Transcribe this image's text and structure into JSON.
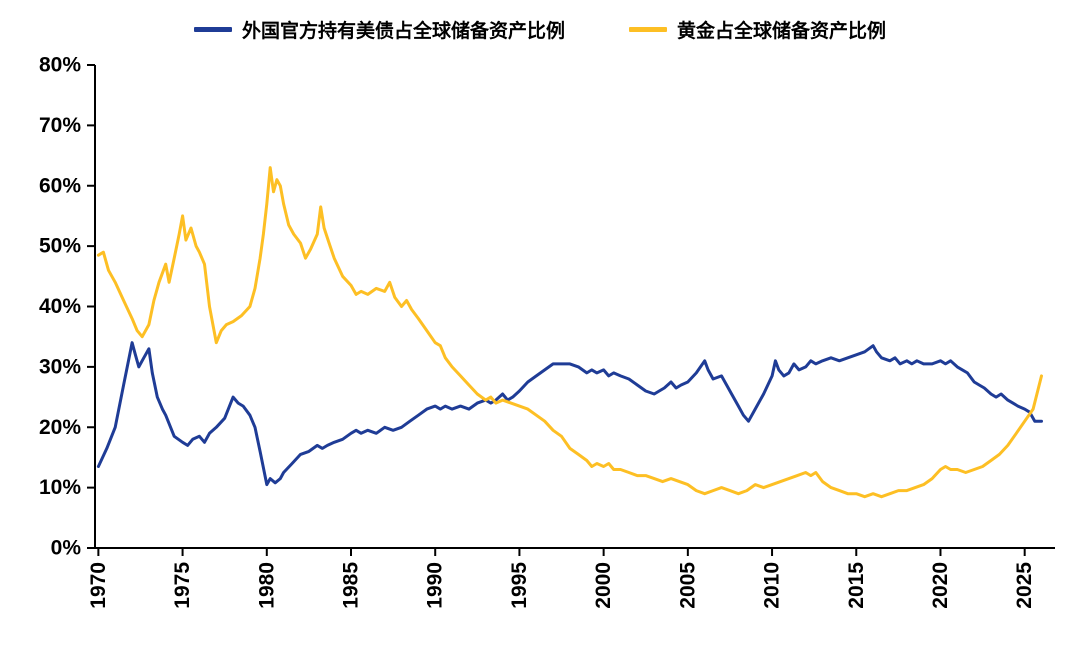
{
  "chart_data": {
    "type": "line",
    "title": "",
    "grid": false,
    "legend_position": "top",
    "axis_color": "#000000",
    "xlim": [
      1969.8,
      2026.8
    ],
    "ylim": [
      0,
      80
    ],
    "yticks": [
      {
        "value": 0,
        "label": "0%"
      },
      {
        "value": 10,
        "label": "10%"
      },
      {
        "value": 20,
        "label": "20%"
      },
      {
        "value": 30,
        "label": "30%"
      },
      {
        "value": 40,
        "label": "40%"
      },
      {
        "value": 50,
        "label": "50%"
      },
      {
        "value": 60,
        "label": "60%"
      },
      {
        "value": 70,
        "label": "70%"
      },
      {
        "value": 80,
        "label": "80%"
      }
    ],
    "xticks": [
      {
        "value": 1970,
        "label": "1970"
      },
      {
        "value": 1975,
        "label": "1975"
      },
      {
        "value": 1980,
        "label": "1980"
      },
      {
        "value": 1985,
        "label": "1985"
      },
      {
        "value": 1990,
        "label": "1990"
      },
      {
        "value": 1995,
        "label": "1995"
      },
      {
        "value": 2000,
        "label": "2000"
      },
      {
        "value": 2005,
        "label": "2005"
      },
      {
        "value": 2010,
        "label": "2010"
      },
      {
        "value": 2015,
        "label": "2015"
      },
      {
        "value": 2020,
        "label": "2020"
      },
      {
        "value": 2025,
        "label": "2025"
      }
    ],
    "legend": [
      {
        "label": "外国官方持有美债占全球储备资产比例",
        "color": "#1F3C96"
      },
      {
        "label": "黄金占全球储备资产比例",
        "color": "#FDBF24"
      }
    ],
    "series": [
      {
        "id": "treasury",
        "name": "外国官方持有美债占全球储备资产比例",
        "color": "#1F3C96",
        "points": [
          [
            1970.0,
            13.5
          ],
          [
            1970.5,
            16.5
          ],
          [
            1971.0,
            20
          ],
          [
            1971.5,
            27
          ],
          [
            1972.0,
            34
          ],
          [
            1972.2,
            32
          ],
          [
            1972.4,
            30
          ],
          [
            1972.7,
            31.5
          ],
          [
            1973.0,
            33
          ],
          [
            1973.2,
            29
          ],
          [
            1973.5,
            25
          ],
          [
            1973.8,
            23
          ],
          [
            1974.0,
            22
          ],
          [
            1974.5,
            18.5
          ],
          [
            1975.0,
            17.5
          ],
          [
            1975.3,
            17
          ],
          [
            1975.6,
            18
          ],
          [
            1976.0,
            18.5
          ],
          [
            1976.3,
            17.5
          ],
          [
            1976.6,
            19
          ],
          [
            1977.0,
            20
          ],
          [
            1977.5,
            21.5
          ],
          [
            1978.0,
            25
          ],
          [
            1978.3,
            24
          ],
          [
            1978.6,
            23.5
          ],
          [
            1979.0,
            22
          ],
          [
            1979.3,
            20
          ],
          [
            1979.6,
            16
          ],
          [
            1980.0,
            10.5
          ],
          [
            1980.2,
            11.5
          ],
          [
            1980.5,
            10.8
          ],
          [
            1980.8,
            11.5
          ],
          [
            1981.0,
            12.5
          ],
          [
            1981.5,
            14
          ],
          [
            1982.0,
            15.5
          ],
          [
            1982.5,
            16
          ],
          [
            1983.0,
            17
          ],
          [
            1983.3,
            16.5
          ],
          [
            1983.6,
            17
          ],
          [
            1984.0,
            17.5
          ],
          [
            1984.5,
            18
          ],
          [
            1985.0,
            19
          ],
          [
            1985.3,
            19.5
          ],
          [
            1985.6,
            19
          ],
          [
            1986.0,
            19.5
          ],
          [
            1986.5,
            19
          ],
          [
            1987.0,
            20
          ],
          [
            1987.5,
            19.5
          ],
          [
            1988.0,
            20
          ],
          [
            1988.5,
            21
          ],
          [
            1989.0,
            22
          ],
          [
            1989.5,
            23
          ],
          [
            1990.0,
            23.5
          ],
          [
            1990.3,
            23
          ],
          [
            1990.6,
            23.5
          ],
          [
            1991.0,
            23
          ],
          [
            1991.5,
            23.5
          ],
          [
            1992.0,
            23
          ],
          [
            1992.5,
            24
          ],
          [
            1993.0,
            24.5
          ],
          [
            1993.3,
            24
          ],
          [
            1993.6,
            24.5
          ],
          [
            1994.0,
            25.5
          ],
          [
            1994.3,
            24.5
          ],
          [
            1994.6,
            25
          ],
          [
            1995.0,
            26
          ],
          [
            1995.5,
            27.5
          ],
          [
            1996.0,
            28.5
          ],
          [
            1996.5,
            29.5
          ],
          [
            1997.0,
            30.5
          ],
          [
            1997.5,
            30.5
          ],
          [
            1998.0,
            30.5
          ],
          [
            1998.5,
            30
          ],
          [
            1999.0,
            29
          ],
          [
            1999.3,
            29.5
          ],
          [
            1999.6,
            29
          ],
          [
            2000.0,
            29.5
          ],
          [
            2000.3,
            28.5
          ],
          [
            2000.6,
            29
          ],
          [
            2001.0,
            28.5
          ],
          [
            2001.5,
            28
          ],
          [
            2002.0,
            27
          ],
          [
            2002.5,
            26
          ],
          [
            2003.0,
            25.5
          ],
          [
            2003.3,
            26
          ],
          [
            2003.6,
            26.5
          ],
          [
            2004.0,
            27.5
          ],
          [
            2004.3,
            26.5
          ],
          [
            2004.6,
            27
          ],
          [
            2005.0,
            27.5
          ],
          [
            2005.5,
            29
          ],
          [
            2006.0,
            31
          ],
          [
            2006.2,
            29.5
          ],
          [
            2006.5,
            28
          ],
          [
            2007.0,
            28.5
          ],
          [
            2007.3,
            27
          ],
          [
            2007.6,
            25.5
          ],
          [
            2008.0,
            23.5
          ],
          [
            2008.3,
            22
          ],
          [
            2008.6,
            21
          ],
          [
            2009.0,
            23
          ],
          [
            2009.5,
            25.5
          ],
          [
            2010.0,
            28.5
          ],
          [
            2010.2,
            31
          ],
          [
            2010.4,
            29.5
          ],
          [
            2010.7,
            28.5
          ],
          [
            2011.0,
            29
          ],
          [
            2011.3,
            30.5
          ],
          [
            2011.6,
            29.5
          ],
          [
            2012.0,
            30
          ],
          [
            2012.3,
            31
          ],
          [
            2012.6,
            30.5
          ],
          [
            2013.0,
            31
          ],
          [
            2013.5,
            31.5
          ],
          [
            2014.0,
            31
          ],
          [
            2014.5,
            31.5
          ],
          [
            2015.0,
            32
          ],
          [
            2015.5,
            32.5
          ],
          [
            2016.0,
            33.5
          ],
          [
            2016.2,
            32.5
          ],
          [
            2016.5,
            31.5
          ],
          [
            2017.0,
            31
          ],
          [
            2017.3,
            31.5
          ],
          [
            2017.6,
            30.5
          ],
          [
            2018.0,
            31
          ],
          [
            2018.3,
            30.5
          ],
          [
            2018.6,
            31
          ],
          [
            2019.0,
            30.5
          ],
          [
            2019.5,
            30.5
          ],
          [
            2020.0,
            31
          ],
          [
            2020.3,
            30.5
          ],
          [
            2020.6,
            31
          ],
          [
            2021.0,
            30
          ],
          [
            2021.3,
            29.5
          ],
          [
            2021.6,
            29
          ],
          [
            2022.0,
            27.5
          ],
          [
            2022.3,
            27
          ],
          [
            2022.6,
            26.5
          ],
          [
            2023.0,
            25.5
          ],
          [
            2023.3,
            25
          ],
          [
            2023.6,
            25.5
          ],
          [
            2024.0,
            24.5
          ],
          [
            2024.3,
            24
          ],
          [
            2024.6,
            23.5
          ],
          [
            2025.0,
            23
          ],
          [
            2025.3,
            22.5
          ],
          [
            2025.6,
            21
          ],
          [
            2026.0,
            21
          ]
        ]
      },
      {
        "id": "gold",
        "name": "黄金占全球储备资产比例",
        "color": "#FDBF24",
        "points": [
          [
            1970.0,
            48.5
          ],
          [
            1970.3,
            49
          ],
          [
            1970.6,
            46
          ],
          [
            1971.0,
            44
          ],
          [
            1971.5,
            41
          ],
          [
            1972.0,
            38
          ],
          [
            1972.3,
            36
          ],
          [
            1972.6,
            35
          ],
          [
            1973.0,
            37
          ],
          [
            1973.3,
            41
          ],
          [
            1973.6,
            44
          ],
          [
            1974.0,
            47
          ],
          [
            1974.2,
            44
          ],
          [
            1974.5,
            48
          ],
          [
            1974.8,
            52
          ],
          [
            1975.0,
            55
          ],
          [
            1975.2,
            51
          ],
          [
            1975.5,
            53
          ],
          [
            1975.8,
            50
          ],
          [
            1976.0,
            49
          ],
          [
            1976.3,
            47
          ],
          [
            1976.6,
            40
          ],
          [
            1977.0,
            34
          ],
          [
            1977.3,
            36
          ],
          [
            1977.6,
            37
          ],
          [
            1978.0,
            37.5
          ],
          [
            1978.5,
            38.5
          ],
          [
            1979.0,
            40
          ],
          [
            1979.3,
            43
          ],
          [
            1979.6,
            48
          ],
          [
            1979.8,
            52
          ],
          [
            1980.0,
            57
          ],
          [
            1980.2,
            63
          ],
          [
            1980.4,
            59
          ],
          [
            1980.6,
            61
          ],
          [
            1980.8,
            60
          ],
          [
            1981.0,
            57
          ],
          [
            1981.3,
            53.5
          ],
          [
            1981.6,
            52
          ],
          [
            1982.0,
            50.5
          ],
          [
            1982.3,
            48
          ],
          [
            1982.6,
            49.5
          ],
          [
            1983.0,
            52
          ],
          [
            1983.2,
            56.5
          ],
          [
            1983.4,
            53
          ],
          [
            1983.7,
            50.5
          ],
          [
            1984.0,
            48
          ],
          [
            1984.5,
            45
          ],
          [
            1985.0,
            43.5
          ],
          [
            1985.3,
            42
          ],
          [
            1985.6,
            42.5
          ],
          [
            1986.0,
            42
          ],
          [
            1986.5,
            43
          ],
          [
            1987.0,
            42.5
          ],
          [
            1987.3,
            44
          ],
          [
            1987.6,
            41.5
          ],
          [
            1988.0,
            40
          ],
          [
            1988.3,
            41
          ],
          [
            1988.6,
            39.5
          ],
          [
            1989.0,
            38
          ],
          [
            1989.5,
            36
          ],
          [
            1990.0,
            34
          ],
          [
            1990.3,
            33.5
          ],
          [
            1990.6,
            31.5
          ],
          [
            1991.0,
            30
          ],
          [
            1991.5,
            28.5
          ],
          [
            1992.0,
            27
          ],
          [
            1992.5,
            25.5
          ],
          [
            1993.0,
            24.5
          ],
          [
            1993.3,
            25
          ],
          [
            1993.6,
            24
          ],
          [
            1994.0,
            24.5
          ],
          [
            1994.5,
            24
          ],
          [
            1995.0,
            23.5
          ],
          [
            1995.5,
            23
          ],
          [
            1996.0,
            22
          ],
          [
            1996.5,
            21
          ],
          [
            1997.0,
            19.5
          ],
          [
            1997.5,
            18.5
          ],
          [
            1998.0,
            16.5
          ],
          [
            1998.5,
            15.5
          ],
          [
            1999.0,
            14.5
          ],
          [
            1999.3,
            13.5
          ],
          [
            1999.6,
            14
          ],
          [
            2000.0,
            13.5
          ],
          [
            2000.3,
            14
          ],
          [
            2000.6,
            13
          ],
          [
            2001.0,
            13
          ],
          [
            2001.5,
            12.5
          ],
          [
            2002.0,
            12
          ],
          [
            2002.5,
            12
          ],
          [
            2003.0,
            11.5
          ],
          [
            2003.5,
            11
          ],
          [
            2004.0,
            11.5
          ],
          [
            2004.5,
            11
          ],
          [
            2005.0,
            10.5
          ],
          [
            2005.5,
            9.5
          ],
          [
            2006.0,
            9
          ],
          [
            2006.5,
            9.5
          ],
          [
            2007.0,
            10
          ],
          [
            2007.5,
            9.5
          ],
          [
            2008.0,
            9
          ],
          [
            2008.5,
            9.5
          ],
          [
            2009.0,
            10.5
          ],
          [
            2009.5,
            10
          ],
          [
            2010.0,
            10.5
          ],
          [
            2010.5,
            11
          ],
          [
            2011.0,
            11.5
          ],
          [
            2011.5,
            12
          ],
          [
            2012.0,
            12.5
          ],
          [
            2012.3,
            12
          ],
          [
            2012.6,
            12.5
          ],
          [
            2013.0,
            11
          ],
          [
            2013.5,
            10
          ],
          [
            2014.0,
            9.5
          ],
          [
            2014.5,
            9
          ],
          [
            2015.0,
            9
          ],
          [
            2015.5,
            8.5
          ],
          [
            2016.0,
            9
          ],
          [
            2016.5,
            8.5
          ],
          [
            2017.0,
            9
          ],
          [
            2017.5,
            9.5
          ],
          [
            2018.0,
            9.5
          ],
          [
            2018.5,
            10
          ],
          [
            2019.0,
            10.5
          ],
          [
            2019.5,
            11.5
          ],
          [
            2020.0,
            13
          ],
          [
            2020.3,
            13.5
          ],
          [
            2020.6,
            13
          ],
          [
            2021.0,
            13
          ],
          [
            2021.5,
            12.5
          ],
          [
            2022.0,
            13
          ],
          [
            2022.5,
            13.5
          ],
          [
            2023.0,
            14.5
          ],
          [
            2023.5,
            15.5
          ],
          [
            2024.0,
            17
          ],
          [
            2024.5,
            19
          ],
          [
            2025.0,
            21
          ],
          [
            2025.5,
            23
          ],
          [
            2026.0,
            28.5
          ]
        ]
      }
    ]
  }
}
